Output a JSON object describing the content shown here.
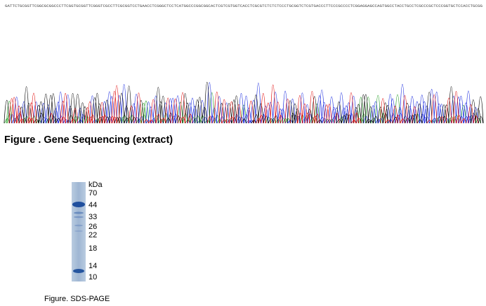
{
  "chromatogram": {
    "sequence": "GATTCTGCGGTTCGGCGCGGCCCTTCGGTGCGGTTCGGGTCGCCTTCGCGGTCCTGAACCTCGGGCTCCTCATGGCCCGGCGGCACTCGTCGTGGTCACCTCGCGTCTCTCTCCCTGCGGTCTCGTGACCCTTCCCGCCCCTCGGAGGAGCCAGTGGCCTACCTGCCTCGCCCGCTCCCGGTGCTCCACCTGCGG",
    "base_colors": {
      "A": "#2aa02a",
      "C": "#2030e0",
      "G": "#111111",
      "T": "#e01010"
    }
  },
  "captions": {
    "sequencing": "Figure . Gene Sequencing (extract)",
    "sds_page": "Figure. SDS-PAGE"
  },
  "gel": {
    "unit": "kDa",
    "markers": [
      "70",
      "44",
      "33",
      "26",
      "22",
      "18",
      "14",
      "10"
    ],
    "lane_color": "#a9bed8",
    "band_color": "#1f4f9e"
  }
}
